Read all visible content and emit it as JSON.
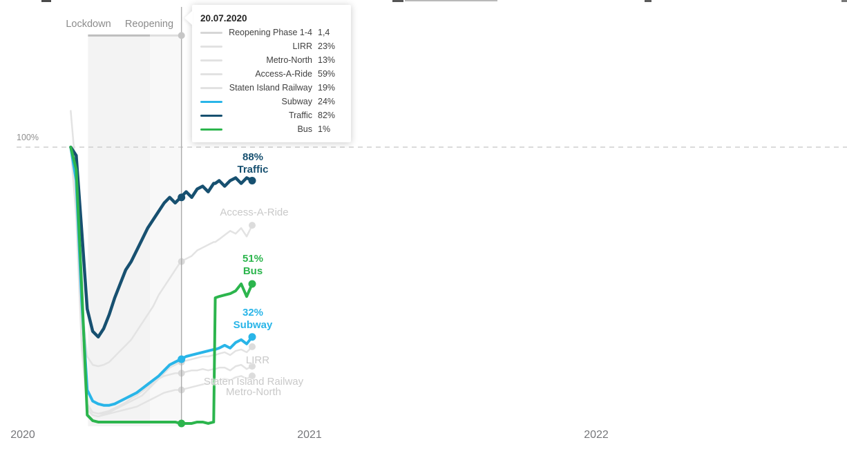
{
  "annotations": {
    "lockdown_label": "Lockdown",
    "reopening_label": "Reopening"
  },
  "tooltip": {
    "title": "20.07.2020",
    "rows": [
      {
        "label": "Reopening Phase 1-4",
        "value": "1,4",
        "swatch_color": "#d6d6d6"
      },
      {
        "label": "LIRR",
        "value": "23%",
        "swatch_color": "#e2e2e2"
      },
      {
        "label": "Metro-North",
        "value": "13%",
        "swatch_color": "#e2e2e2"
      },
      {
        "label": "Access-A-Ride",
        "value": "59%",
        "swatch_color": "#e2e2e2"
      },
      {
        "label": "Staten Island Railway",
        "value": "19%",
        "swatch_color": "#e2e2e2"
      },
      {
        "label": "Subway",
        "value": "24%",
        "swatch_color": "#29b5e8"
      },
      {
        "label": "Traffic",
        "value": "82%",
        "swatch_color": "#175070"
      },
      {
        "label": "Bus",
        "value": "1%",
        "swatch_color": "#2cb54d"
      }
    ]
  },
  "chart_data": {
    "type": "line",
    "title": "",
    "x_axis": {
      "tick_labels": [
        "2020",
        "2021",
        "2022"
      ],
      "unit": "day_of_year_2020"
    },
    "y_axis": {
      "ref_label": "100%",
      "ref_value": 100,
      "ylim": [
        0,
        145
      ],
      "unit": "percent_of_pre_pandemic",
      "grid": "single_dashed_line_at_100"
    },
    "legend_position": "hover_tooltip",
    "hover": {
      "date": "20.07.2020",
      "day": 202
    },
    "bands": [
      {
        "label": "Lockdown",
        "start_day": 83,
        "end_day": 162,
        "color": "#f3f3f3"
      },
      {
        "label": "Reopening",
        "start_day": 162,
        "end_day": 202,
        "color": "#f8f8f8"
      }
    ],
    "phase_line": {
      "name": "Reopening Phase 1-4",
      "hover_value": "1,4",
      "level_pct": 140,
      "dot_color": "#c6c6c6",
      "segments": [
        {
          "start_day": 83,
          "end_day": 162,
          "color": "#bdbdbd"
        },
        {
          "start_day": 162,
          "end_day": 202,
          "color": "#dedede"
        }
      ]
    },
    "days": [
      61,
      68,
      75,
      82,
      89,
      96,
      103,
      110,
      117,
      124,
      131,
      138,
      145,
      152,
      159,
      166,
      173,
      180,
      187,
      194,
      201,
      208,
      215,
      222,
      229,
      236,
      243,
      245,
      250,
      257,
      264,
      271,
      278,
      285,
      292
    ],
    "series": [
      {
        "name": "LIRR",
        "muted": true,
        "color": "#e3e3e3",
        "label_color": "#c9c9c9",
        "hover_value": 23,
        "end_label": null,
        "values": [
          100,
          80,
          30,
          8,
          5,
          4.5,
          4.5,
          5,
          6,
          7,
          8,
          9,
          10,
          11,
          13,
          15,
          17,
          19,
          21,
          22,
          23,
          23.5,
          24,
          24.5,
          25,
          25,
          25.5,
          25.5,
          26,
          26.5,
          25.5,
          27,
          27.5,
          26.5,
          28.5
        ]
      },
      {
        "name": "Metro-North",
        "muted": true,
        "color": "#e3e3e3",
        "label_color": "#c9c9c9",
        "hover_value": 13,
        "end_label": null,
        "values": [
          100,
          75,
          28,
          6,
          4,
          3.5,
          4,
          4.5,
          5,
          5.5,
          6,
          6.5,
          7,
          8,
          9,
          10,
          11,
          12,
          12.5,
          13,
          13,
          13.5,
          14,
          14.5,
          15,
          15.5,
          16,
          16,
          16.5,
          17,
          16.5,
          17.5,
          18,
          17,
          18
        ]
      },
      {
        "name": "Access-A-Ride",
        "muted": true,
        "color": "#e3e3e3",
        "label_color": "#c9c9c9",
        "hover_value": 59,
        "end_label": null,
        "values": [
          113,
          90,
          45,
          25,
          22,
          21.5,
          22,
          23,
          25,
          27,
          29,
          31,
          34,
          37,
          40,
          43,
          47,
          50,
          53,
          56,
          59,
          60,
          61,
          63,
          64,
          65,
          66,
          66,
          67,
          68.5,
          70,
          69,
          71,
          68,
          72
        ]
      },
      {
        "name": "Staten Island Railway",
        "muted": true,
        "color": "#e3e3e3",
        "label_color": "#c9c9c9",
        "hover_value": 19,
        "end_label": null,
        "values": [
          100,
          78,
          30,
          7,
          5,
          4.5,
          5,
          5.5,
          6.5,
          7.5,
          8.5,
          10,
          11,
          12.5,
          14,
          15.5,
          17,
          18,
          18.5,
          19,
          19,
          19.5,
          20,
          20,
          20.5,
          20,
          20.5,
          20.5,
          21,
          21,
          20,
          21.5,
          22,
          20.5,
          21.5
        ]
      },
      {
        "name": "Subway",
        "muted": false,
        "color": "#29b5e8",
        "label_color": "#29b5e8",
        "hover_value": 24,
        "end_label": "32%",
        "values": [
          100,
          88,
          45,
          13,
          9,
          8,
          7.5,
          7.5,
          8,
          9,
          10,
          11,
          12,
          13.5,
          15,
          16.5,
          18,
          20,
          22,
          23,
          24,
          25,
          25.5,
          26,
          26.5,
          27,
          27.5,
          27.5,
          28,
          29,
          28,
          30,
          31,
          29.5,
          32
        ]
      },
      {
        "name": "Traffic",
        "muted": false,
        "color": "#175070",
        "label_color": "#175070",
        "hover_value": 82,
        "end_label": "88%",
        "values": [
          100,
          97,
          70,
          42,
          34,
          32,
          35,
          40,
          46,
          51,
          56,
          59,
          63,
          67,
          71,
          74,
          77,
          80,
          82,
          80,
          82,
          84,
          82,
          85,
          86,
          84,
          87,
          87,
          88,
          86,
          88,
          89,
          87,
          89,
          88
        ]
      },
      {
        "name": "Bus",
        "muted": false,
        "color": "#2cb54d",
        "label_color": "#2cb54d",
        "hover_value": 1,
        "end_label": "51%",
        "values": [
          100,
          92,
          50,
          4,
          2,
          1.5,
          1.5,
          1.5,
          1.5,
          1.5,
          1.5,
          1.5,
          1.5,
          1.5,
          1.5,
          1.5,
          1.5,
          1.5,
          1.5,
          1.5,
          1,
          1,
          1,
          1.5,
          1.5,
          1,
          1.5,
          46,
          46.5,
          47,
          47.5,
          48.5,
          51,
          46.5,
          51
        ]
      }
    ]
  }
}
